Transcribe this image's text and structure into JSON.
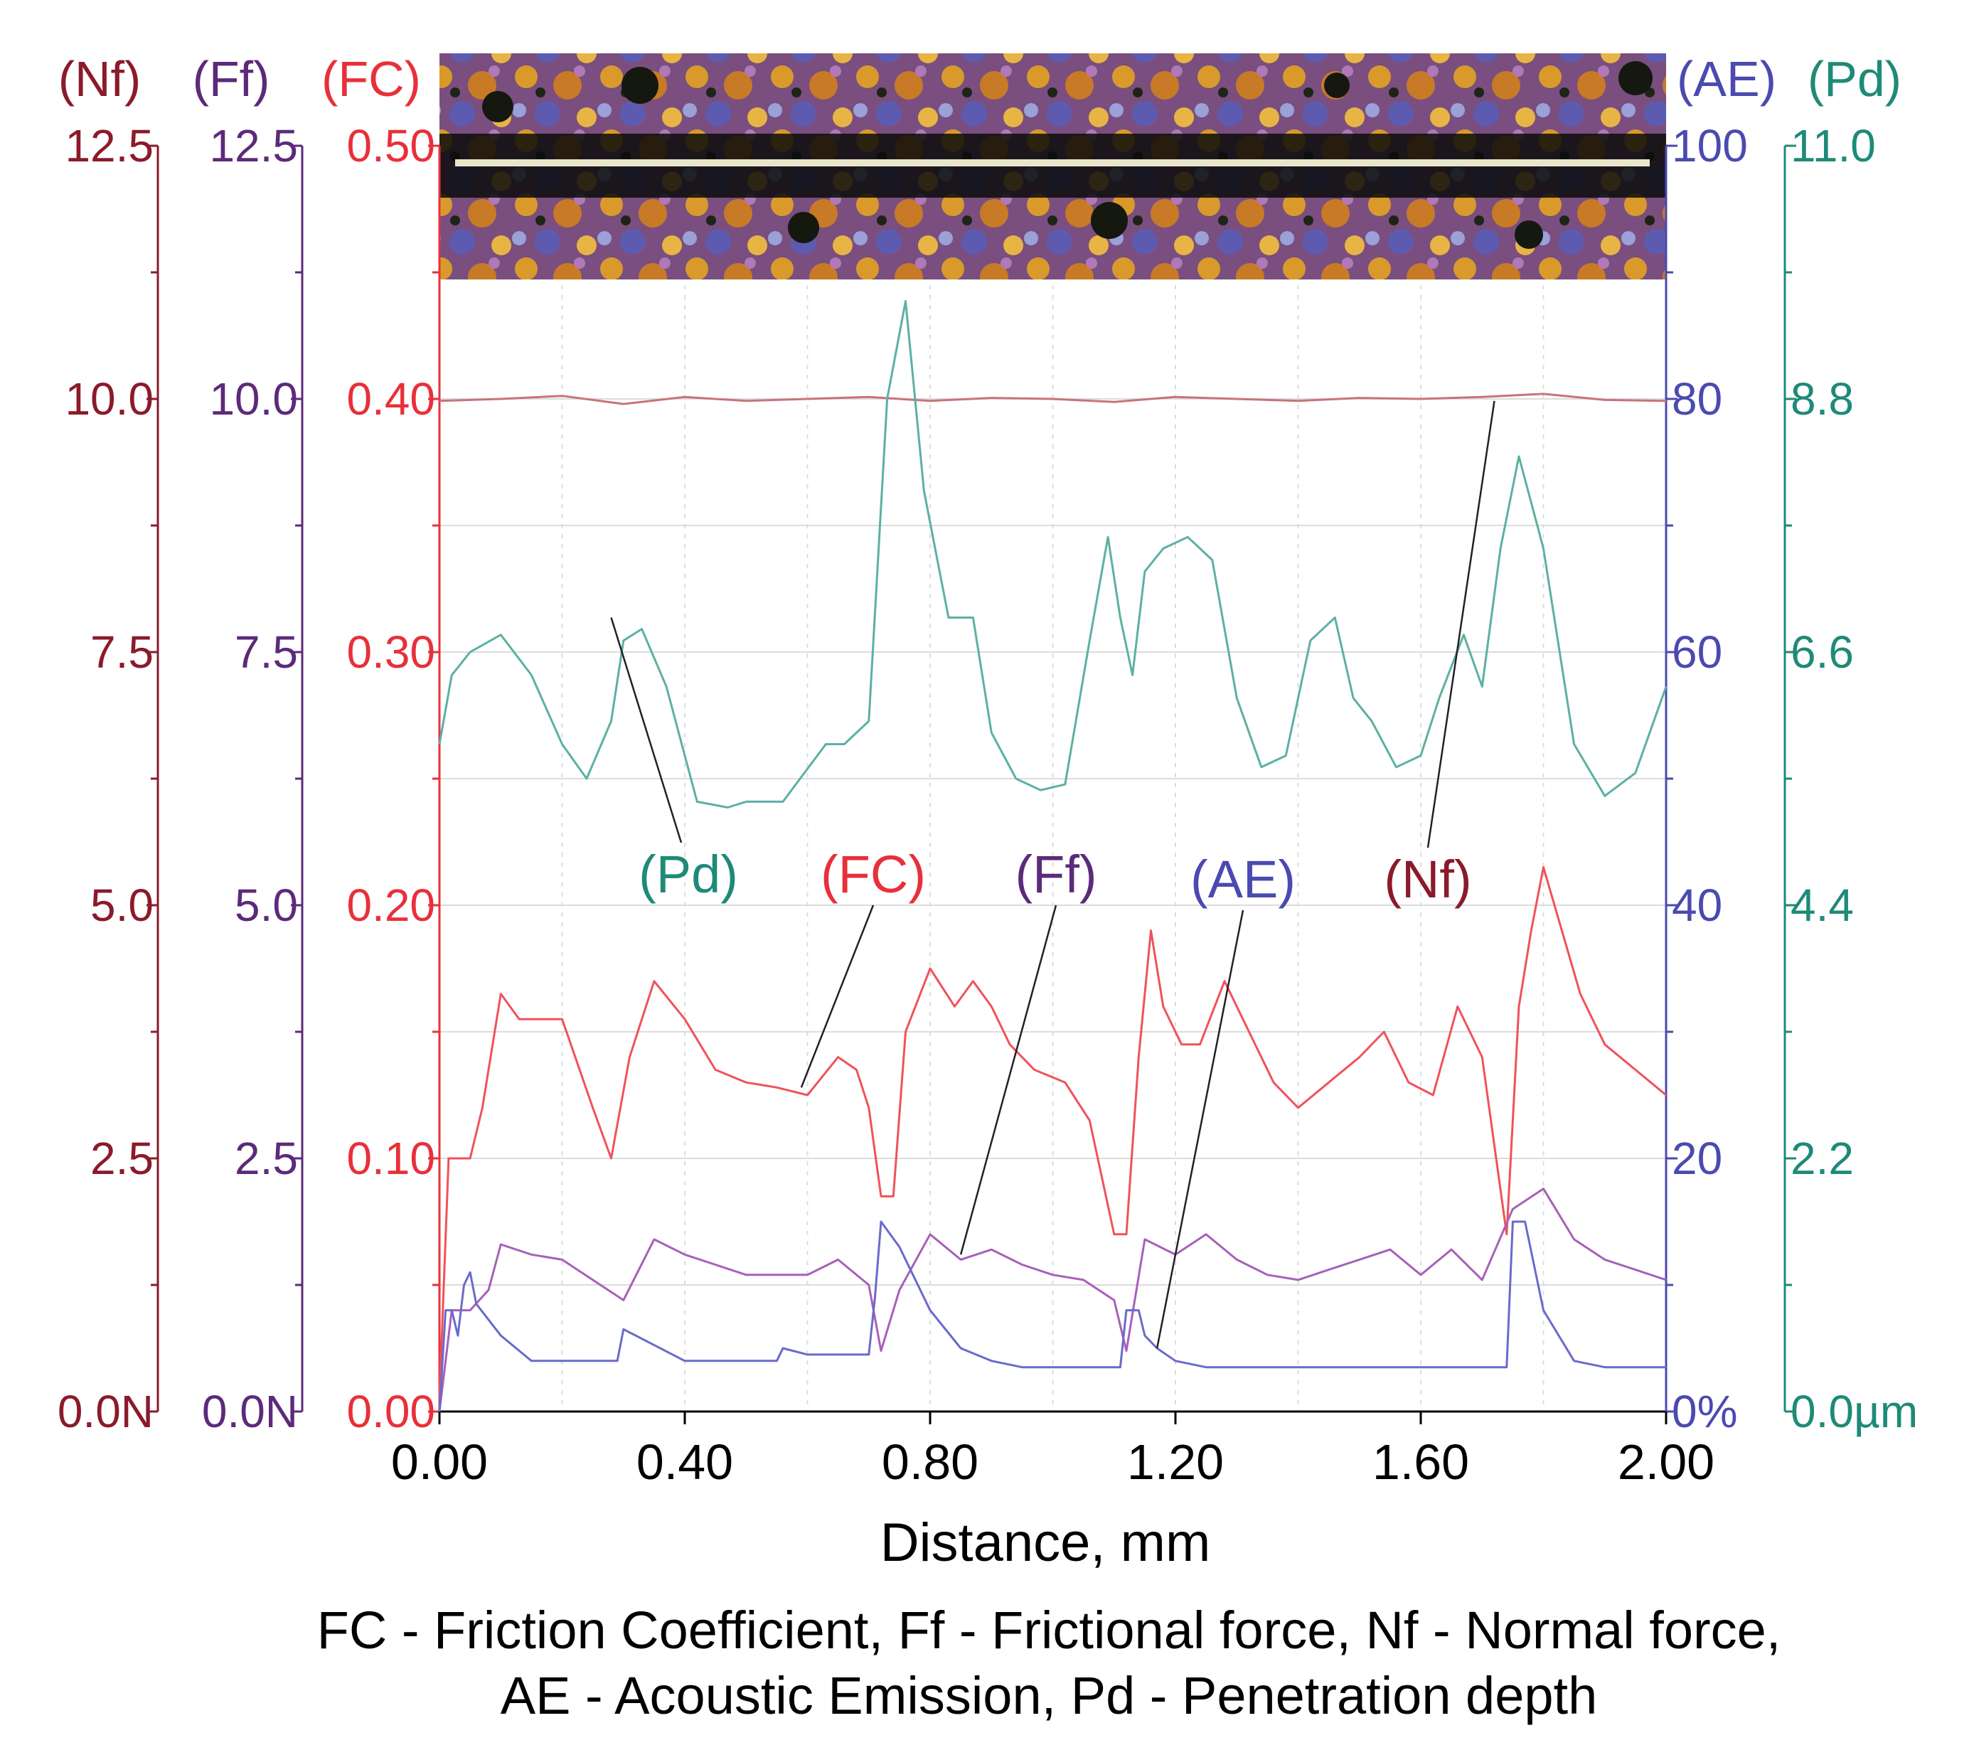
{
  "chart_data": {
    "type": "line",
    "xlabel": "Distance, mm",
    "xlim": [
      0,
      2.0
    ],
    "x_ticks": [
      "0.00",
      "0.40",
      "0.80",
      "1.20",
      "1.60",
      "2.00"
    ],
    "caption": [
      "FC - Friction Coefficient, Ff - Frictional force, Nf - Normal force,",
      "AE -  Acoustic Emission, Pd - Penetration depth"
    ],
    "grid": true,
    "inset_image": "scratch track micrograph",
    "axes": [
      {
        "key": "Nf",
        "title": "(Nf)",
        "side": "left",
        "color": "#8b1a2a",
        "range": [
          0,
          12.5
        ],
        "ticks": [
          "0.0N",
          "2.5",
          "5.0",
          "7.5",
          "10.0",
          "12.5"
        ]
      },
      {
        "key": "Ff",
        "title": "(Ff)",
        "side": "left",
        "color": "#5c2a7a",
        "range": [
          0,
          12.5
        ],
        "ticks": [
          "0.0N",
          "2.5",
          "5.0",
          "7.5",
          "10.0",
          "12.5"
        ]
      },
      {
        "key": "FC",
        "title": "(FC)",
        "side": "left",
        "color": "#e8303a",
        "range": [
          0,
          0.5
        ],
        "ticks": [
          "0.00",
          "0.10",
          "0.20",
          "0.30",
          "0.40",
          "0.50"
        ]
      },
      {
        "key": "AE",
        "title": "(AE)",
        "side": "right",
        "color": "#4a4ab0",
        "range": [
          0,
          100
        ],
        "ticks": [
          "0%",
          "20",
          "40",
          "60",
          "80",
          "100"
        ]
      },
      {
        "key": "Pd",
        "title": "(Pd)",
        "side": "right",
        "color": "#1e8a78",
        "range": [
          0,
          11
        ],
        "ticks": [
          "0.0µm",
          "2.2",
          "4.4",
          "6.6",
          "8.8",
          "11.0"
        ]
      }
    ],
    "series": [
      {
        "name": "(Nf)",
        "axis": "Nf",
        "color": "#c9727c",
        "x": [
          0.0,
          0.1,
          0.2,
          0.3,
          0.4,
          0.5,
          0.6,
          0.7,
          0.8,
          0.9,
          1.0,
          1.1,
          1.2,
          1.3,
          1.4,
          1.5,
          1.6,
          1.7,
          1.8,
          1.9,
          2.0
        ],
        "y": [
          9.98,
          10.0,
          10.03,
          9.95,
          10.02,
          9.98,
          10.0,
          10.02,
          9.98,
          10.01,
          10.0,
          9.97,
          10.02,
          10.0,
          9.98,
          10.01,
          10.0,
          10.02,
          10.05,
          9.99,
          9.98
        ]
      },
      {
        "name": "(Pd)",
        "axis": "Pd",
        "color": "#5cb0a4",
        "x": [
          0.0,
          0.02,
          0.05,
          0.1,
          0.15,
          0.2,
          0.24,
          0.28,
          0.3,
          0.33,
          0.37,
          0.42,
          0.47,
          0.5,
          0.56,
          0.63,
          0.66,
          0.7,
          0.73,
          0.76,
          0.79,
          0.83,
          0.87,
          0.9,
          0.94,
          0.98,
          1.02,
          1.06,
          1.09,
          1.11,
          1.13,
          1.15,
          1.18,
          1.22,
          1.26,
          1.3,
          1.34,
          1.38,
          1.42,
          1.46,
          1.49,
          1.52,
          1.56,
          1.6,
          1.63,
          1.67,
          1.7,
          1.73,
          1.76,
          1.8,
          1.85,
          1.9,
          1.95,
          2.0
        ],
        "y": [
          5.8,
          6.4,
          6.6,
          6.75,
          6.4,
          5.8,
          5.5,
          6.0,
          6.7,
          6.8,
          6.3,
          5.3,
          5.25,
          5.3,
          5.3,
          5.8,
          5.8,
          6.0,
          8.8,
          9.65,
          8.0,
          6.9,
          6.9,
          5.9,
          5.5,
          5.4,
          5.45,
          6.7,
          7.6,
          6.9,
          6.4,
          7.3,
          7.5,
          7.6,
          7.4,
          6.2,
          5.6,
          5.7,
          6.7,
          6.9,
          6.2,
          6.0,
          5.6,
          5.7,
          6.2,
          6.75,
          6.3,
          7.5,
          8.3,
          7.5,
          5.8,
          5.35,
          5.55,
          6.3
        ]
      },
      {
        "name": "(FC)",
        "axis": "FC",
        "color": "#f0525a",
        "x": [
          0.0,
          0.015,
          0.03,
          0.05,
          0.07,
          0.1,
          0.13,
          0.15,
          0.2,
          0.25,
          0.28,
          0.31,
          0.35,
          0.4,
          0.45,
          0.5,
          0.55,
          0.6,
          0.65,
          0.68,
          0.7,
          0.72,
          0.74,
          0.76,
          0.8,
          0.84,
          0.87,
          0.9,
          0.93,
          0.97,
          1.02,
          1.06,
          1.1,
          1.12,
          1.14,
          1.16,
          1.18,
          1.21,
          1.24,
          1.28,
          1.32,
          1.36,
          1.4,
          1.45,
          1.5,
          1.54,
          1.58,
          1.62,
          1.66,
          1.7,
          1.74,
          1.76,
          1.78,
          1.8,
          1.83,
          1.86,
          1.9,
          1.95,
          2.0
        ],
        "y": [
          0.005,
          0.1,
          0.1,
          0.1,
          0.12,
          0.165,
          0.155,
          0.155,
          0.155,
          0.12,
          0.1,
          0.14,
          0.17,
          0.155,
          0.135,
          0.13,
          0.128,
          0.125,
          0.14,
          0.135,
          0.12,
          0.085,
          0.085,
          0.15,
          0.175,
          0.16,
          0.17,
          0.16,
          0.145,
          0.135,
          0.13,
          0.115,
          0.07,
          0.07,
          0.14,
          0.19,
          0.16,
          0.145,
          0.145,
          0.17,
          0.15,
          0.13,
          0.12,
          0.13,
          0.14,
          0.15,
          0.13,
          0.125,
          0.16,
          0.14,
          0.07,
          0.16,
          0.19,
          0.215,
          0.19,
          0.165,
          0.145,
          0.135,
          0.125
        ]
      },
      {
        "name": "(Ff)",
        "axis": "Ff",
        "color": "#a860b8",
        "x": [
          0.0,
          0.02,
          0.05,
          0.08,
          0.1,
          0.15,
          0.2,
          0.25,
          0.3,
          0.35,
          0.4,
          0.45,
          0.5,
          0.55,
          0.6,
          0.65,
          0.7,
          0.72,
          0.75,
          0.8,
          0.85,
          0.9,
          0.95,
          1.0,
          1.05,
          1.1,
          1.12,
          1.15,
          1.2,
          1.25,
          1.3,
          1.35,
          1.4,
          1.45,
          1.5,
          1.55,
          1.6,
          1.65,
          1.7,
          1.75,
          1.8,
          1.85,
          1.9,
          1.95,
          2.0
        ],
        "y": [
          0.0,
          1.0,
          1.0,
          1.2,
          1.65,
          1.55,
          1.5,
          1.3,
          1.1,
          1.7,
          1.55,
          1.45,
          1.35,
          1.35,
          1.35,
          1.5,
          1.25,
          0.6,
          1.2,
          1.75,
          1.5,
          1.6,
          1.45,
          1.35,
          1.3,
          1.1,
          0.6,
          1.7,
          1.55,
          1.75,
          1.5,
          1.35,
          1.3,
          1.4,
          1.5,
          1.6,
          1.35,
          1.6,
          1.3,
          2.0,
          2.2,
          1.7,
          1.5,
          1.4,
          1.3
        ]
      },
      {
        "name": "(AE)",
        "axis": "AE",
        "color": "#6a6acb",
        "x": [
          0.0,
          0.01,
          0.02,
          0.03,
          0.04,
          0.05,
          0.06,
          0.1,
          0.15,
          0.2,
          0.25,
          0.29,
          0.3,
          0.32,
          0.4,
          0.5,
          0.55,
          0.56,
          0.6,
          0.7,
          0.71,
          0.72,
          0.75,
          0.8,
          0.85,
          0.9,
          0.95,
          1.0,
          1.05,
          1.11,
          1.12,
          1.14,
          1.15,
          1.17,
          1.2,
          1.25,
          1.3,
          1.4,
          1.5,
          1.6,
          1.7,
          1.74,
          1.75,
          1.77,
          1.8,
          1.85,
          1.9,
          1.95,
          2.0
        ],
        "y": [
          0.0,
          8.0,
          8.0,
          6.0,
          10.0,
          11.0,
          8.5,
          6.0,
          4.0,
          4.0,
          4.0,
          4.0,
          6.5,
          6.0,
          4.0,
          4.0,
          4.0,
          5.0,
          4.5,
          4.5,
          9.0,
          15.0,
          13.0,
          8.0,
          5.0,
          4.0,
          3.5,
          3.5,
          3.5,
          3.5,
          8.0,
          8.0,
          6.0,
          5.0,
          4.0,
          3.5,
          3.5,
          3.5,
          3.5,
          3.5,
          3.5,
          3.5,
          15.0,
          15.0,
          8.0,
          4.0,
          3.5,
          3.5,
          3.5
        ]
      }
    ],
    "annotations": [
      {
        "label": "(Pd)",
        "series": "Pd",
        "point_x": 0.28,
        "point_y": 6.9
      },
      {
        "label": "(FC)",
        "series": "FC",
        "point_x": 0.59,
        "point_y": 0.128
      },
      {
        "label": "(Ff)",
        "series": "Ff",
        "point_x": 0.85,
        "point_y": 1.55
      },
      {
        "label": "(AE)",
        "series": "AE",
        "point_x": 1.17,
        "point_y": 5.0
      },
      {
        "label": "(Nf)",
        "series": "Nf",
        "point_x": 1.72,
        "point_y": 9.98
      }
    ]
  }
}
